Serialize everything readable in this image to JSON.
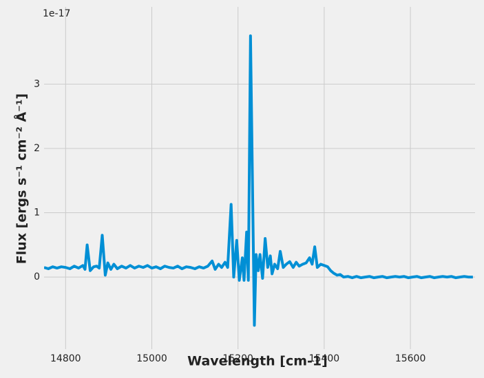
{
  "chart_data": {
    "type": "line",
    "x_label": "Wavelength [cm-1]",
    "y_label": "Flux [ergs s⁻¹ cm⁻² Å⁻¹]",
    "y_offset_label": "1e-17",
    "x": [
      14750,
      14760,
      14770,
      14780,
      14790,
      14800,
      14810,
      14820,
      14830,
      14840,
      14845,
      14850,
      14857,
      14865,
      14872,
      14878,
      14885,
      14892,
      14898,
      14905,
      14912,
      14920,
      14930,
      14940,
      14950,
      14960,
      14970,
      14980,
      14990,
      15000,
      15010,
      15020,
      15030,
      15040,
      15050,
      15060,
      15070,
      15080,
      15090,
      15100,
      15110,
      15120,
      15130,
      15140,
      15147,
      15155,
      15162,
      15170,
      15176,
      15184,
      15190,
      15197,
      15203,
      15210,
      15214,
      15220,
      15224,
      15229,
      15238,
      15242,
      15247,
      15251,
      15257,
      15263,
      15269,
      15275,
      15279,
      15285,
      15292,
      15298,
      15305,
      15312,
      15320,
      15328,
      15335,
      15342,
      15350,
      15358,
      15366,
      15372,
      15378,
      15384,
      15392,
      15400,
      15408,
      15415,
      15422,
      15430,
      15437,
      15445,
      15455,
      15465,
      15475,
      15485,
      15495,
      15505,
      15515,
      15525,
      15535,
      15545,
      15555,
      15565,
      15575,
      15585,
      15595,
      15605,
      15615,
      15625,
      15635,
      15645,
      15655,
      15665,
      15675,
      15685,
      15695,
      15705,
      15715,
      15725,
      15735,
      15745
    ],
    "series": [
      {
        "color": "#008fd5",
        "values": [
          0.15,
          0.13,
          0.16,
          0.14,
          0.16,
          0.15,
          0.13,
          0.17,
          0.14,
          0.18,
          0.12,
          0.5,
          0.1,
          0.16,
          0.17,
          0.14,
          0.65,
          0.03,
          0.22,
          0.12,
          0.2,
          0.13,
          0.17,
          0.14,
          0.18,
          0.14,
          0.17,
          0.15,
          0.18,
          0.14,
          0.16,
          0.13,
          0.17,
          0.15,
          0.14,
          0.17,
          0.13,
          0.16,
          0.15,
          0.13,
          0.16,
          0.14,
          0.17,
          0.25,
          0.12,
          0.2,
          0.15,
          0.23,
          0.15,
          1.13,
          0.0,
          0.57,
          -0.05,
          0.3,
          -0.05,
          0.7,
          -0.05,
          3.75,
          -0.75,
          0.35,
          0.1,
          0.35,
          -0.02,
          0.6,
          0.15,
          0.33,
          0.05,
          0.2,
          0.13,
          0.4,
          0.15,
          0.2,
          0.24,
          0.15,
          0.23,
          0.17,
          0.2,
          0.22,
          0.3,
          0.2,
          0.47,
          0.15,
          0.2,
          0.18,
          0.16,
          0.1,
          0.06,
          0.03,
          0.04,
          0.0,
          0.01,
          -0.01,
          0.01,
          -0.01,
          0.0,
          0.01,
          -0.01,
          0.0,
          0.01,
          -0.01,
          0.0,
          0.01,
          0.0,
          0.01,
          -0.01,
          0.0,
          0.01,
          -0.01,
          0.0,
          0.01,
          -0.01,
          0.0,
          0.01,
          0.0,
          0.01,
          -0.01,
          0.0,
          0.01,
          0.0,
          0.0
        ]
      }
    ],
    "xlim": [
      14750,
      15750
    ],
    "xticks": [
      14800,
      15000,
      15200,
      15400,
      15600
    ],
    "ylim": [
      -1.12,
      4.2
    ],
    "yticks": [
      0,
      1,
      2,
      3
    ],
    "grid": true
  }
}
